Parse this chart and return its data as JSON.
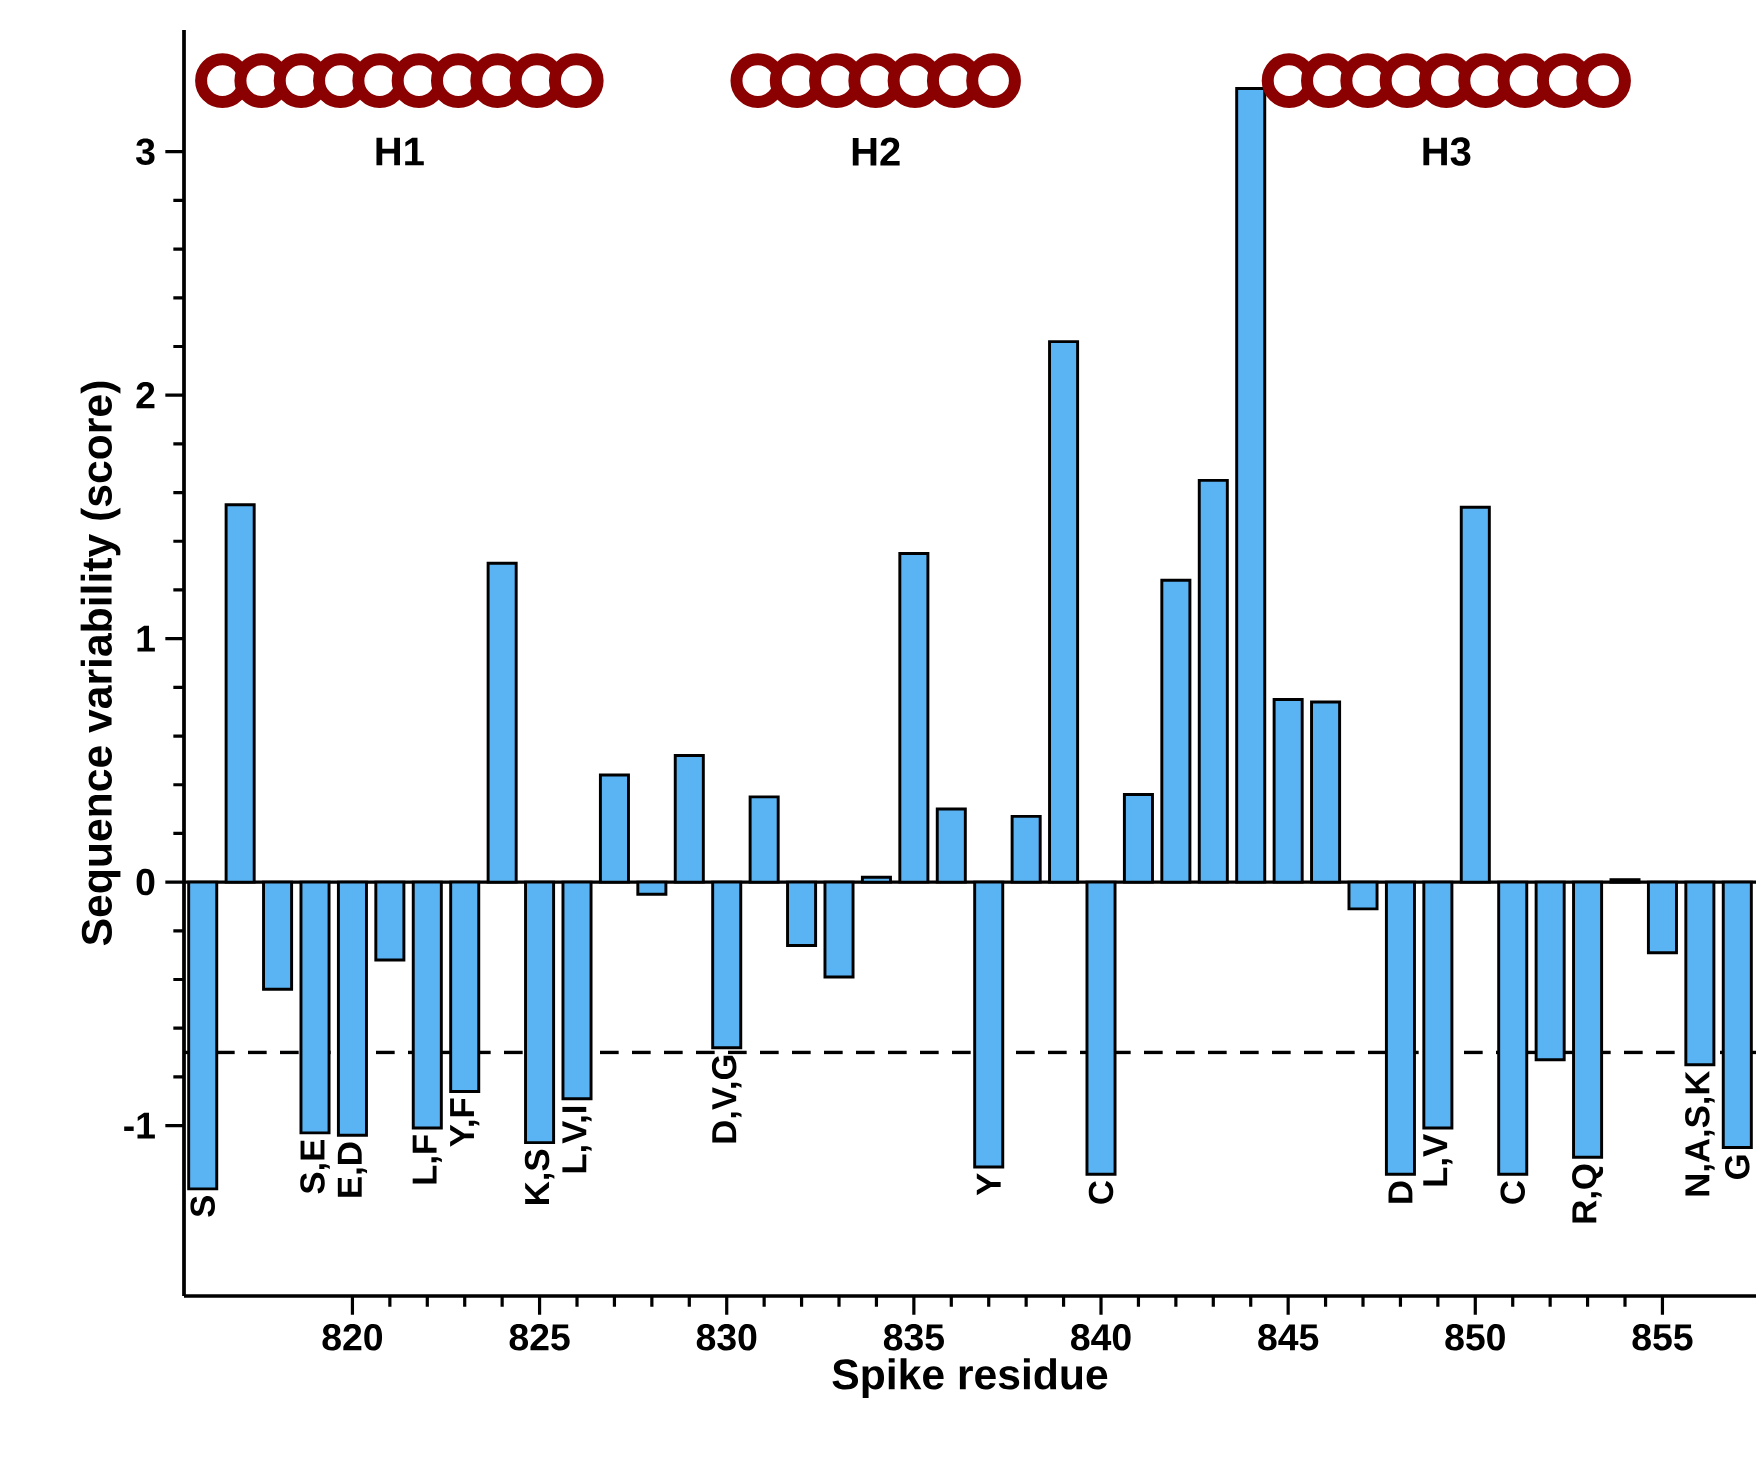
{
  "chart_data": {
    "type": "bar",
    "xlabel": "Spike residue",
    "ylabel": "Sequence variability (score)",
    "x": [
      816,
      817,
      818,
      819,
      820,
      821,
      822,
      823,
      824,
      825,
      826,
      827,
      828,
      829,
      830,
      831,
      832,
      833,
      834,
      835,
      836,
      837,
      838,
      839,
      840,
      841,
      842,
      843,
      844,
      845,
      846,
      847,
      848,
      849,
      850,
      851,
      852,
      853,
      854,
      855,
      856,
      857
    ],
    "values": [
      -1.26,
      1.55,
      -0.44,
      -1.03,
      -1.04,
      -0.32,
      -1.01,
      -0.86,
      1.31,
      -1.07,
      -0.89,
      0.44,
      -0.05,
      0.52,
      -0.68,
      0.35,
      -0.26,
      -0.39,
      0.02,
      1.35,
      0.3,
      -1.17,
      0.27,
      2.22,
      -1.2,
      0.36,
      1.24,
      1.65,
      3.26,
      0.75,
      0.74,
      -0.11,
      -1.2,
      -1.01,
      1.54,
      -1.2,
      -0.73,
      -1.13,
      0.01,
      -0.29,
      -0.75,
      -1.09
    ],
    "color": "#5ab4f4",
    "xlim": [
      815.5,
      857.5
    ],
    "ylim": [
      -1.7,
      3.5
    ],
    "xticks": [
      820,
      825,
      830,
      835,
      840,
      845,
      850,
      855
    ],
    "yticks": [
      -1,
      0,
      1,
      2,
      3
    ],
    "ref_lines": [
      {
        "axis": "y",
        "value": 0,
        "line_style": "solid"
      },
      {
        "axis": "y",
        "value": -0.7,
        "line_style": "dashed"
      }
    ],
    "annotations": [
      "H1",
      "H2",
      "H3",
      {
        "text": "S",
        "x": 816,
        "y": -1.26
      },
      {
        "text": "S,E",
        "x": 819,
        "y": -1.03
      },
      {
        "text": "E,D",
        "x": 820,
        "y": -1.04
      },
      {
        "text": "L,F",
        "x": 822,
        "y": -1.01
      },
      {
        "text": "Y,F",
        "x": 823,
        "y": -0.86
      },
      {
        "text": "K,S",
        "x": 825,
        "y": -1.07
      },
      {
        "text": "L,V,I",
        "x": 826,
        "y": -0.89
      },
      {
        "text": "D,V,G",
        "x": 830,
        "y": -0.68
      },
      {
        "text": "Y",
        "x": 837,
        "y": -1.17
      },
      {
        "text": "C",
        "x": 840,
        "y": -1.2
      },
      {
        "text": "D",
        "x": 848,
        "y": -1.2
      },
      {
        "text": "L,V",
        "x": 849,
        "y": -1.01
      },
      {
        "text": "C",
        "x": 851,
        "y": -1.2
      },
      {
        "text": "R,Q",
        "x": 853,
        "y": -1.13
      },
      {
        "text": "N,A,S,K",
        "x": 856,
        "y": -0.75
      },
      {
        "text": "G",
        "x": 857,
        "y": -1.09
      }
    ]
  }
}
